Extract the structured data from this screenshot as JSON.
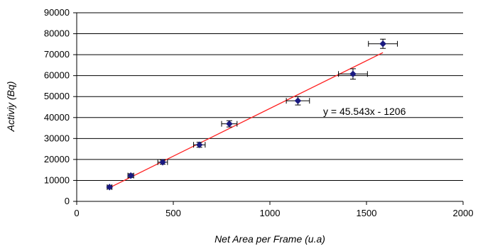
{
  "chart_data": {
    "type": "scatter",
    "title": "",
    "xlabel": "Net Area per Frame (u.a)",
    "ylabel": "Activiy (Bq)",
    "xlim": [
      0,
      2000
    ],
    "ylim": [
      0,
      90000
    ],
    "x_ticks": [
      0,
      500,
      1000,
      1500,
      2000
    ],
    "y_ticks": [
      0,
      10000,
      20000,
      30000,
      40000,
      50000,
      60000,
      70000,
      80000,
      90000
    ],
    "grid": "horizontal",
    "legend": "none",
    "points": [
      {
        "x": 170,
        "y": 6800,
        "x_err": 12,
        "y_err": 700
      },
      {
        "x": 280,
        "y": 12300,
        "x_err": 15,
        "y_err": 900
      },
      {
        "x": 445,
        "y": 18700,
        "x_err": 25,
        "y_err": 1000
      },
      {
        "x": 635,
        "y": 27000,
        "x_err": 30,
        "y_err": 1200
      },
      {
        "x": 790,
        "y": 37000,
        "x_err": 40,
        "y_err": 1500
      },
      {
        "x": 1145,
        "y": 48000,
        "x_err": 60,
        "y_err": 2000
      },
      {
        "x": 1430,
        "y": 60800,
        "x_err": 75,
        "y_err": 2500
      },
      {
        "x": 1585,
        "y": 75200,
        "x_err": 75,
        "y_err": 2200
      }
    ],
    "trendline": {
      "slope": 45.543,
      "intercept": -1206,
      "x_range": [
        170,
        1585
      ],
      "label": "y = 45.543x - 1206"
    },
    "colors": {
      "marker": "#1a1a80",
      "trendline": "#ff2020",
      "grid": "#000000",
      "axis": "#000000",
      "error_bar": "#000000"
    }
  }
}
